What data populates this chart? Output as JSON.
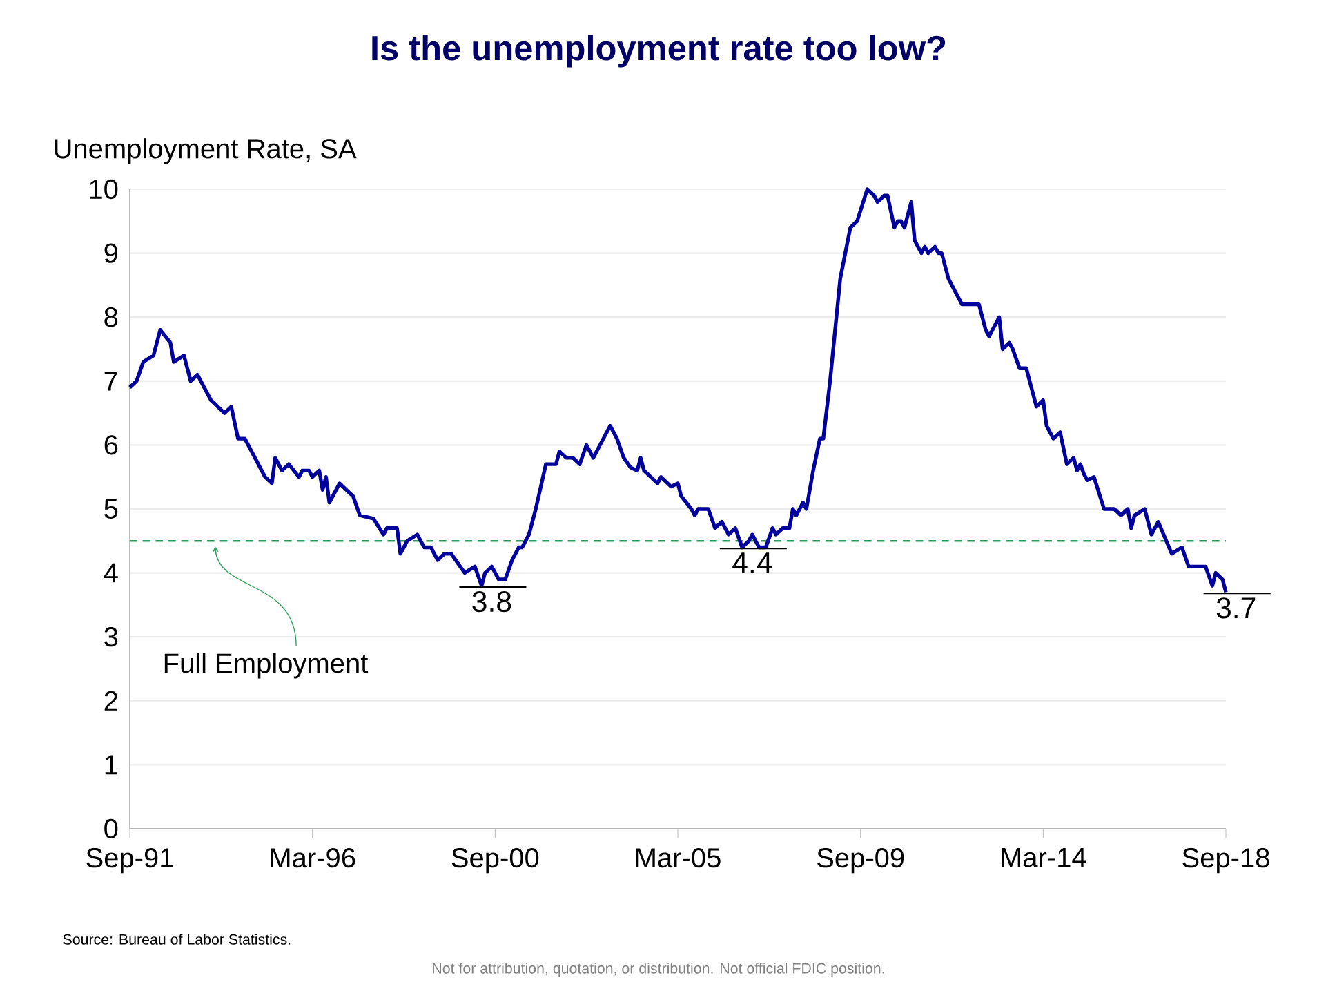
{
  "chart_data": {
    "type": "line",
    "title": "Is the unemployment rate too low?",
    "ylabel": "Unemployment Rate, SA",
    "x": [
      "1991-09",
      "1991-11",
      "1992-01",
      "1992-04",
      "1992-06",
      "1992-09",
      "1992-10",
      "1993-01",
      "1993-03",
      "1993-05",
      "1993-09",
      "1994-01",
      "1994-03",
      "1994-05",
      "1994-07",
      "1994-10",
      "1995-01",
      "1995-03",
      "1995-04",
      "1995-06",
      "1995-08",
      "1995-11",
      "1995-12",
      "1996-02",
      "1996-03",
      "1996-05",
      "1996-06",
      "1996-07",
      "1996-08",
      "1996-11",
      "1997-03",
      "1997-05",
      "1997-09",
      "1997-12",
      "1998-01",
      "1998-04",
      "1998-05",
      "1998-07",
      "1998-10",
      "1998-12",
      "1999-02",
      "1999-04",
      "1999-06",
      "1999-08",
      "1999-12",
      "2000-03",
      "2000-05",
      "2000-06",
      "2000-08",
      "2000-10",
      "2000-12",
      "2001-02",
      "2001-04",
      "2001-05",
      "2001-07",
      "2001-09",
      "2001-12",
      "2002-03",
      "2002-04",
      "2002-06",
      "2002-08",
      "2002-10",
      "2002-12",
      "2003-02",
      "2003-04",
      "2003-07",
      "2003-09",
      "2003-11",
      "2004-01",
      "2004-03",
      "2004-04",
      "2004-05",
      "2004-09",
      "2004-10",
      "2005-01",
      "2005-03",
      "2005-04",
      "2005-07",
      "2005-08",
      "2005-09",
      "2005-12",
      "2006-02",
      "2006-04",
      "2006-06",
      "2006-08",
      "2006-10",
      "2006-12",
      "2007-01",
      "2007-03",
      "2007-05",
      "2007-07",
      "2007-08",
      "2007-10",
      "2007-12",
      "2008-01",
      "2008-02",
      "2008-04",
      "2008-05",
      "2008-07",
      "2008-09",
      "2008-10",
      "2008-12",
      "2009-03",
      "2009-06",
      "2009-08",
      "2009-11",
      "2010-01",
      "2010-02",
      "2010-04",
      "2010-05",
      "2010-07",
      "2010-08",
      "2010-09",
      "2010-10",
      "2010-12",
      "2011-01",
      "2011-03",
      "2011-04",
      "2011-05",
      "2011-07",
      "2011-08",
      "2011-09",
      "2011-11",
      "2012-02",
      "2012-03",
      "2012-08",
      "2012-10",
      "2012-11",
      "2013-02",
      "2013-03",
      "2013-05",
      "2013-06",
      "2013-08",
      "2013-10",
      "2014-01",
      "2014-03",
      "2014-04",
      "2014-06",
      "2014-08",
      "2014-10",
      "2014-12",
      "2015-01",
      "2015-02",
      "2015-03",
      "2015-04",
      "2015-06",
      "2015-09",
      "2015-12",
      "2016-02",
      "2016-04",
      "2016-05",
      "2016-06",
      "2016-09",
      "2016-11",
      "2017-01",
      "2017-05",
      "2017-08",
      "2017-10",
      "2018-03",
      "2018-05",
      "2018-06",
      "2018-08",
      "2018-09"
    ],
    "series": [
      {
        "color": "#00009c",
        "values": [
          6.9,
          7.0,
          7.3,
          7.4,
          7.8,
          7.6,
          7.3,
          7.4,
          7.0,
          7.1,
          6.7,
          6.5,
          6.6,
          6.1,
          6.1,
          5.8,
          5.5,
          5.4,
          5.8,
          5.6,
          5.7,
          5.5,
          5.6,
          5.6,
          5.5,
          5.6,
          5.3,
          5.5,
          5.1,
          5.4,
          5.2,
          4.9,
          4.85,
          4.6,
          4.7,
          4.7,
          4.3,
          4.5,
          4.6,
          4.4,
          4.4,
          4.2,
          4.3,
          4.3,
          4.0,
          4.1,
          3.8,
          4.0,
          4.1,
          3.9,
          3.9,
          4.2,
          4.4,
          4.4,
          4.6,
          5.0,
          5.7,
          5.7,
          5.9,
          5.8,
          5.8,
          5.7,
          6.0,
          5.8,
          6.0,
          6.3,
          6.1,
          5.8,
          5.65,
          5.6,
          5.8,
          5.6,
          5.4,
          5.5,
          5.35,
          5.4,
          5.2,
          5.0,
          4.9,
          5.0,
          5.0,
          4.7,
          4.8,
          4.6,
          4.7,
          4.4,
          4.5,
          4.6,
          4.4,
          4.4,
          4.7,
          4.6,
          4.7,
          4.7,
          5.0,
          4.9,
          5.1,
          5.0,
          5.6,
          6.1,
          6.1,
          7.0,
          8.6,
          9.4,
          9.5,
          10.0,
          9.9,
          9.8,
          9.9,
          9.9,
          9.4,
          9.5,
          9.5,
          9.4,
          9.8,
          9.2,
          9.0,
          9.1,
          9.0,
          9.1,
          9.0,
          9.0,
          8.6,
          8.3,
          8.2,
          8.2,
          7.8,
          7.7,
          8.0,
          7.5,
          7.6,
          7.5,
          7.2,
          7.2,
          6.6,
          6.7,
          6.3,
          6.1,
          6.2,
          5.7,
          5.8,
          5.6,
          5.7,
          5.55,
          5.45,
          5.5,
          5.0,
          5.0,
          4.9,
          5.0,
          4.7,
          4.9,
          5.0,
          4.6,
          4.8,
          4.3,
          4.4,
          4.1,
          4.1,
          3.8,
          4.0,
          3.9,
          3.7
        ]
      }
    ],
    "xlim": [
      "1991-09",
      "2018-09"
    ],
    "xticks": [
      {
        "value": "1991-09",
        "label": "Sep-91"
      },
      {
        "value": "1996-03",
        "label": "Mar-96"
      },
      {
        "value": "2000-09",
        "label": "Sep-00"
      },
      {
        "value": "2005-03",
        "label": "Mar-05"
      },
      {
        "value": "2009-09",
        "label": "Sep-09"
      },
      {
        "value": "2014-03",
        "label": "Mar-14"
      },
      {
        "value": "2018-09",
        "label": "Sep-18"
      }
    ],
    "ylim": [
      0,
      10
    ],
    "yticks": [
      0,
      1,
      2,
      3,
      4,
      5,
      6,
      7,
      8,
      9,
      10
    ],
    "grid": "y",
    "ref_lines": [
      {
        "axis": "y",
        "value": 4.5,
        "label": "Full Employment",
        "color": "#2ca05a",
        "line_style": "dashed"
      }
    ],
    "annotations": [
      {
        "text": "3.8",
        "x": "2000-05",
        "y": 3.8
      },
      {
        "text": "4.4",
        "x": "2006-10",
        "y": 4.4
      },
      {
        "text": "3.7",
        "x": "2018-09",
        "y": 3.7
      },
      "Source: Bureau of Labor Statistics.",
      "Not for attribution, quotation, or distribution. Not official FDIC position."
    ]
  }
}
